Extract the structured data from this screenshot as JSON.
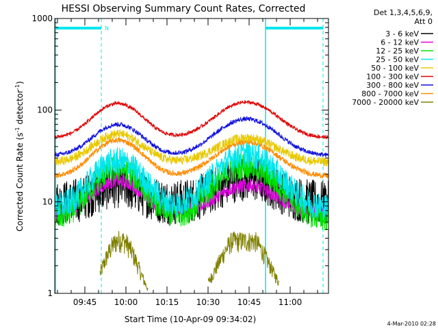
{
  "chart_data": {
    "type": "line",
    "title": "HESSI Observing Summary Count Rates, Corrected",
    "xlabel": "Start Time (10-Apr-09 09:34:02)",
    "ylabel": "Corrected Count Rate (s",
    "ylabel_sup1": "-1",
    "ylabel_mid": " detector",
    "ylabel_sup2": "-1",
    "ylabel_end": ")",
    "y_scale": "log",
    "ylim": [
      1,
      1000
    ],
    "xlim": [
      "09:34",
      "11:14"
    ],
    "x_ticks": [
      "09:45",
      "10:00",
      "10:15",
      "10:30",
      "10:45",
      "11:00"
    ],
    "y_ticks": [
      "1",
      "10",
      "100",
      "1000"
    ],
    "legend_header": [
      "Det 1,3,4,5,6,9,",
      "Att 0"
    ],
    "legend_placement": "top-right",
    "series": [
      {
        "name": "3 - 6 keV",
        "color": "#000000",
        "base": 9.5,
        "peak1": 15,
        "peak2": 18,
        "noise": 0.5
      },
      {
        "name": "6 - 12 keV",
        "color": "#e000e0",
        "base": 7.5,
        "peak1": 17,
        "peak2": 15,
        "noise": 0.15
      },
      {
        "name": "12 - 25 keV",
        "color": "#00e000",
        "base": 6.5,
        "peak1": 23,
        "peak2": 25,
        "noise": 0.3
      },
      {
        "name": "25 - 50 keV",
        "color": "#00e5ee",
        "base": 8.5,
        "peak1": 28,
        "peak2": 33,
        "noise": 0.3
      },
      {
        "name": "50 - 100 keV",
        "color": "#e8c800",
        "base": 27,
        "peak1": 55,
        "peak2": 50,
        "noise": 0.1
      },
      {
        "name": "100 - 300 keV",
        "color": "#e00000",
        "base": 50,
        "peak1": 118,
        "peak2": 122,
        "noise": 0.04
      },
      {
        "name": "300 - 800 keV",
        "color": "#1010e0",
        "base": 32,
        "peak1": 70,
        "peak2": 80,
        "noise": 0.05
      },
      {
        "name": "800 - 7000 keV",
        "color": "#ff8c00",
        "base": 19,
        "peak1": 47,
        "peak2": 45,
        "noise": 0.06
      },
      {
        "name": "7000 - 20000 keV",
        "color": "#808000",
        "base": 0,
        "peak1": 0,
        "peak2": 0,
        "noise": 0
      }
    ],
    "flags": {
      "saa_label": "N",
      "markers": [
        "09:51",
        "10:51",
        "11:12"
      ],
      "saa_bars": [
        [
          "09:34",
          "09:51"
        ],
        [
          "10:51",
          "11:12"
        ]
      ]
    }
  },
  "timestamp": "4-Mar-2010 02:28"
}
